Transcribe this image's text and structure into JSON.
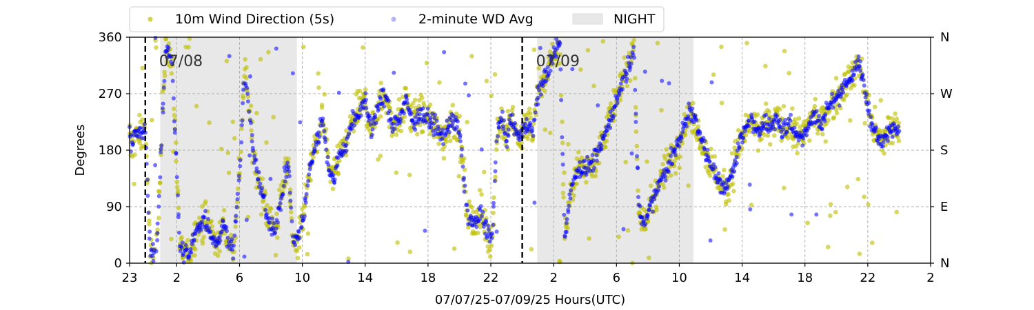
{
  "chart_data": {
    "type": "scatter",
    "xlabel": "07/07/25-07/09/25  Hours(UTC)",
    "ylabel": "Degrees",
    "x_unit": "hours UTC, counted from 07/07 00:00",
    "xlim": [
      23,
      74
    ],
    "ylim": [
      0,
      360
    ],
    "x_tick_values": [
      23,
      26,
      30,
      34,
      38,
      42,
      46,
      50,
      54,
      58,
      62,
      66,
      70,
      74
    ],
    "x_tick_labels": [
      "23",
      "2",
      "6",
      "10",
      "14",
      "18",
      "22",
      "2",
      "6",
      "10",
      "14",
      "18",
      "22",
      "2"
    ],
    "y_ticks": [
      0,
      90,
      180,
      270,
      360
    ],
    "y_tick_labels": [
      "0",
      "90",
      "180",
      "270",
      "360"
    ],
    "y2_ticks": [
      0,
      90,
      180,
      270,
      360
    ],
    "y2_tick_labels": [
      "N",
      "E",
      "S",
      "W",
      "N"
    ],
    "grid": true,
    "legend_position": "top",
    "legend": [
      {
        "label": "10m Wind Direction (5s)",
        "kind": "marker",
        "color": "#bfbf00"
      },
      {
        "label": "2-minute WD Avg",
        "kind": "marker",
        "color": "#0000ff"
      },
      {
        "label": "NIGHT",
        "kind": "patch",
        "color": "#e8e8e8"
      }
    ],
    "night_spans": [
      [
        24.95,
        33.65
      ],
      [
        48.95,
        58.9
      ]
    ],
    "date_markers": [
      {
        "x": 24.0,
        "label": "07/08"
      },
      {
        "x": 48.0,
        "label": "07/09"
      }
    ],
    "series": [
      {
        "name": "10m Wind Direction (5s)",
        "color": "#bfbf00",
        "trend": [
          [
            23.0,
            190
          ],
          [
            23.6,
            205
          ],
          [
            24.0,
            210
          ],
          [
            24.3,
            25
          ],
          [
            24.7,
            10
          ],
          [
            25.3,
            340
          ],
          [
            25.7,
            330
          ],
          [
            26.2,
            25
          ],
          [
            26.8,
            10
          ],
          [
            27.3,
            60
          ],
          [
            27.8,
            70
          ],
          [
            28.5,
            30
          ],
          [
            29.0,
            60
          ],
          [
            29.6,
            20
          ],
          [
            30.0,
            140
          ],
          [
            30.3,
            310
          ],
          [
            30.6,
            250
          ],
          [
            30.9,
            170
          ],
          [
            31.3,
            125
          ],
          [
            31.7,
            80
          ],
          [
            32.1,
            55
          ],
          [
            32.4,
            65
          ],
          [
            32.7,
            110
          ],
          [
            33.1,
            165
          ],
          [
            33.4,
            30
          ],
          [
            33.8,
            45
          ],
          [
            34.1,
            80
          ],
          [
            34.4,
            140
          ],
          [
            34.7,
            175
          ],
          [
            35.0,
            200
          ],
          [
            35.3,
            230
          ],
          [
            35.7,
            150
          ],
          [
            36.0,
            130
          ],
          [
            36.3,
            170
          ],
          [
            36.8,
            190
          ],
          [
            37.2,
            230
          ],
          [
            37.6,
            240
          ],
          [
            38.0,
            260
          ],
          [
            38.4,
            210
          ],
          [
            38.8,
            250
          ],
          [
            39.3,
            270
          ],
          [
            39.7,
            220
          ],
          [
            40.2,
            230
          ],
          [
            40.6,
            260
          ],
          [
            41.0,
            225
          ],
          [
            41.5,
            240
          ],
          [
            42.0,
            230
          ],
          [
            42.5,
            215
          ],
          [
            43.0,
            200
          ],
          [
            43.5,
            230
          ],
          [
            44.0,
            210
          ],
          [
            44.5,
            80
          ],
          [
            45.0,
            60
          ],
          [
            45.4,
            80
          ],
          [
            45.8,
            50
          ],
          [
            46.1,
            40
          ],
          [
            46.4,
            215
          ],
          [
            46.7,
            225
          ],
          [
            47.0,
            200
          ],
          [
            47.3,
            230
          ],
          [
            47.6,
            210
          ],
          [
            47.9,
            200
          ],
          [
            48.3,
            225
          ],
          [
            48.7,
            210
          ],
          [
            49.0,
            270
          ],
          [
            49.5,
            300
          ],
          [
            50.0,
            330
          ],
          [
            50.4,
            350
          ],
          [
            50.7,
            40
          ],
          [
            51.0,
            100
          ],
          [
            51.3,
            140
          ],
          [
            51.6,
            150
          ],
          [
            52.0,
            150
          ],
          [
            52.4,
            160
          ],
          [
            52.8,
            170
          ],
          [
            53.2,
            200
          ],
          [
            53.6,
            230
          ],
          [
            54.0,
            260
          ],
          [
            54.4,
            290
          ],
          [
            54.8,
            320
          ],
          [
            55.1,
            355
          ],
          [
            55.4,
            90
          ],
          [
            55.8,
            60
          ],
          [
            56.2,
            95
          ],
          [
            56.6,
            120
          ],
          [
            57.0,
            140
          ],
          [
            57.4,
            160
          ],
          [
            57.8,
            180
          ],
          [
            58.2,
            210
          ],
          [
            58.6,
            240
          ],
          [
            59.0,
            230
          ],
          [
            59.4,
            200
          ],
          [
            59.8,
            170
          ],
          [
            60.2,
            150
          ],
          [
            60.6,
            125
          ],
          [
            61.0,
            120
          ],
          [
            61.4,
            150
          ],
          [
            61.8,
            190
          ],
          [
            62.2,
            210
          ],
          [
            62.6,
            230
          ],
          [
            63.0,
            200
          ],
          [
            63.4,
            230
          ],
          [
            63.8,
            215
          ],
          [
            64.2,
            230
          ],
          [
            64.6,
            210
          ],
          [
            65.0,
            225
          ],
          [
            65.4,
            205
          ],
          [
            65.8,
            200
          ],
          [
            66.2,
            220
          ],
          [
            66.6,
            235
          ],
          [
            67.0,
            220
          ],
          [
            67.4,
            245
          ],
          [
            67.8,
            260
          ],
          [
            68.2,
            270
          ],
          [
            68.6,
            285
          ],
          [
            69.0,
            300
          ],
          [
            69.4,
            320
          ],
          [
            69.8,
            280
          ],
          [
            70.0,
            250
          ],
          [
            70.4,
            210
          ],
          [
            70.8,
            190
          ],
          [
            71.2,
            205
          ],
          [
            71.6,
            215
          ],
          [
            72.0,
            220
          ]
        ]
      },
      {
        "name": "2-minute WD Avg",
        "color": "#0000ff",
        "trend": [
          [
            23.0,
            195
          ],
          [
            23.6,
            205
          ],
          [
            24.0,
            210
          ],
          [
            24.3,
            25
          ],
          [
            24.7,
            12
          ],
          [
            25.3,
            340
          ],
          [
            25.7,
            330
          ],
          [
            26.2,
            22
          ],
          [
            26.8,
            12
          ],
          [
            27.3,
            55
          ],
          [
            27.8,
            70
          ],
          [
            28.5,
            30
          ],
          [
            29.0,
            60
          ],
          [
            29.6,
            20
          ],
          [
            30.0,
            140
          ],
          [
            30.3,
            305
          ],
          [
            30.6,
            250
          ],
          [
            30.9,
            170
          ],
          [
            31.3,
            125
          ],
          [
            31.7,
            80
          ],
          [
            32.1,
            55
          ],
          [
            32.4,
            65
          ],
          [
            32.7,
            110
          ],
          [
            33.1,
            165
          ],
          [
            33.4,
            30
          ],
          [
            33.8,
            45
          ],
          [
            34.1,
            80
          ],
          [
            34.4,
            140
          ],
          [
            34.7,
            175
          ],
          [
            35.0,
            200
          ],
          [
            35.3,
            230
          ],
          [
            35.7,
            150
          ],
          [
            36.0,
            130
          ],
          [
            36.3,
            170
          ],
          [
            36.8,
            190
          ],
          [
            37.2,
            230
          ],
          [
            37.6,
            240
          ],
          [
            38.0,
            258
          ],
          [
            38.4,
            210
          ],
          [
            38.8,
            250
          ],
          [
            39.3,
            268
          ],
          [
            39.7,
            220
          ],
          [
            40.2,
            230
          ],
          [
            40.6,
            258
          ],
          [
            41.0,
            225
          ],
          [
            41.5,
            240
          ],
          [
            42.0,
            230
          ],
          [
            42.5,
            215
          ],
          [
            43.0,
            200
          ],
          [
            43.5,
            230
          ],
          [
            44.0,
            210
          ],
          [
            44.5,
            80
          ],
          [
            45.0,
            60
          ],
          [
            45.4,
            80
          ],
          [
            45.8,
            50
          ],
          [
            46.1,
            40
          ],
          [
            46.4,
            215
          ],
          [
            46.7,
            225
          ],
          [
            47.0,
            200
          ],
          [
            47.3,
            230
          ],
          [
            47.6,
            210
          ],
          [
            47.9,
            200
          ],
          [
            48.3,
            225
          ],
          [
            48.7,
            210
          ],
          [
            49.0,
            270
          ],
          [
            49.5,
            300
          ],
          [
            50.0,
            330
          ],
          [
            50.4,
            350
          ],
          [
            50.7,
            40
          ],
          [
            51.0,
            100
          ],
          [
            51.3,
            140
          ],
          [
            51.6,
            150
          ],
          [
            52.0,
            150
          ],
          [
            52.4,
            160
          ],
          [
            52.8,
            170
          ],
          [
            53.2,
            200
          ],
          [
            53.6,
            230
          ],
          [
            54.0,
            260
          ],
          [
            54.4,
            290
          ],
          [
            54.8,
            318
          ],
          [
            55.1,
            352
          ],
          [
            55.4,
            90
          ],
          [
            55.8,
            60
          ],
          [
            56.2,
            95
          ],
          [
            56.6,
            120
          ],
          [
            57.0,
            140
          ],
          [
            57.4,
            160
          ],
          [
            57.8,
            180
          ],
          [
            58.2,
            210
          ],
          [
            58.6,
            240
          ],
          [
            59.0,
            230
          ],
          [
            59.4,
            200
          ],
          [
            59.8,
            170
          ],
          [
            60.2,
            150
          ],
          [
            60.6,
            125
          ],
          [
            61.0,
            120
          ],
          [
            61.4,
            150
          ],
          [
            61.8,
            190
          ],
          [
            62.2,
            210
          ],
          [
            62.6,
            230
          ],
          [
            63.0,
            200
          ],
          [
            63.4,
            230
          ],
          [
            63.8,
            215
          ],
          [
            64.2,
            230
          ],
          [
            64.6,
            210
          ],
          [
            65.0,
            225
          ],
          [
            65.4,
            205
          ],
          [
            65.8,
            200
          ],
          [
            66.2,
            220
          ],
          [
            66.6,
            235
          ],
          [
            67.0,
            220
          ],
          [
            67.4,
            245
          ],
          [
            67.8,
            260
          ],
          [
            68.2,
            270
          ],
          [
            68.6,
            285
          ],
          [
            69.0,
            300
          ],
          [
            69.4,
            318
          ],
          [
            69.8,
            280
          ],
          [
            70.0,
            250
          ],
          [
            70.4,
            210
          ],
          [
            70.8,
            190
          ],
          [
            71.2,
            205
          ],
          [
            71.6,
            215
          ],
          [
            72.0,
            220
          ]
        ]
      }
    ]
  }
}
